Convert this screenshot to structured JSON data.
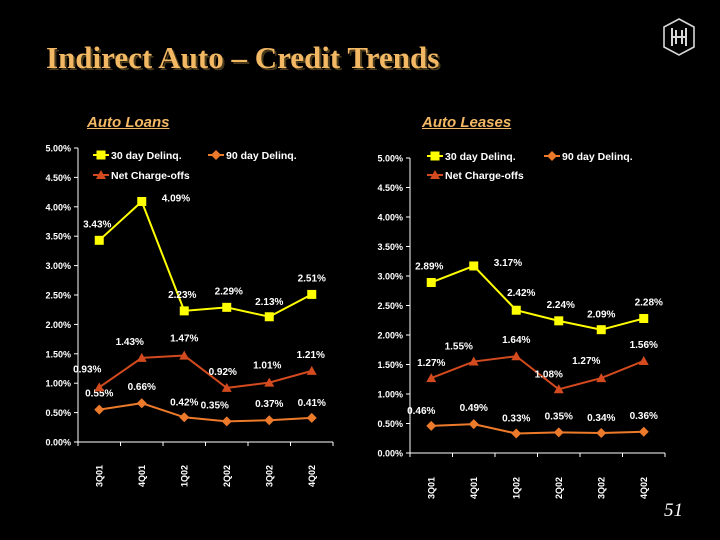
{
  "slide": {
    "title": "Indirect Auto – Credit Trends",
    "page_number": "51",
    "colors": {
      "title": "#f3b864",
      "background": "#000000"
    }
  },
  "panels": [
    {
      "title": "Auto Loans"
    },
    {
      "title": "Auto Leases"
    }
  ],
  "chart_data": [
    {
      "type": "line",
      "title": "Auto Loans",
      "categories": [
        "3Q01",
        "4Q01",
        "1Q02",
        "2Q02",
        "3Q02",
        "4Q02"
      ],
      "ylim": [
        0,
        5
      ],
      "y_ticks": [
        "0.00%",
        "0.50%",
        "1.00%",
        "1.50%",
        "2.00%",
        "2.50%",
        "3.00%",
        "3.50%",
        "4.00%",
        "4.50%",
        "5.00%"
      ],
      "grid": false,
      "legend": "top",
      "series": [
        {
          "name": "30 day Delinq.",
          "color": "#ffff00",
          "marker": "square",
          "values": [
            3.43,
            4.09,
            2.23,
            2.29,
            2.13,
            2.51
          ],
          "labels": [
            "3.43%",
            "4.09%",
            "2.23%",
            "2.29%",
            "2.13%",
            "2.51%"
          ]
        },
        {
          "name": "90 day Delinq.",
          "color": "#ec7a2a",
          "marker": "diamond",
          "values": [
            0.55,
            0.66,
            0.42,
            0.35,
            0.37,
            0.41
          ],
          "labels": [
            "0.55%",
            "0.66%",
            "0.42%",
            "0.35%",
            "0.37%",
            "0.41%"
          ]
        },
        {
          "name": "Net Charge-offs",
          "color": "#d24a1e",
          "marker": "triangle",
          "values": [
            0.93,
            1.43,
            1.47,
            0.92,
            1.01,
            1.21
          ],
          "labels": [
            "0.93%",
            "1.43%",
            "1.47%",
            "0.92%",
            "1.01%",
            "1.21%"
          ]
        }
      ]
    },
    {
      "type": "line",
      "title": "Auto Leases",
      "categories": [
        "3Q01",
        "4Q01",
        "1Q02",
        "2Q02",
        "3Q02",
        "4Q02"
      ],
      "ylim": [
        0,
        5
      ],
      "y_ticks": [
        "0.00%",
        "0.50%",
        "1.00%",
        "1.50%",
        "2.00%",
        "2.50%",
        "3.00%",
        "3.50%",
        "4.00%",
        "4.50%",
        "5.00%"
      ],
      "grid": false,
      "legend": "top",
      "series": [
        {
          "name": "30 day Delinq.",
          "color": "#ffff00",
          "marker": "square",
          "values": [
            2.89,
            3.17,
            2.42,
            2.24,
            2.09,
            2.28
          ],
          "labels": [
            "2.89%",
            "3.17%",
            "2.42%",
            "2.24%",
            "2.09%",
            "2.28%"
          ]
        },
        {
          "name": "90 day Delinq.",
          "color": "#ec7a2a",
          "marker": "diamond",
          "values": [
            0.46,
            0.49,
            0.33,
            0.35,
            0.34,
            0.36
          ],
          "labels": [
            "0.46%",
            "0.49%",
            "0.33%",
            "0.35%",
            "0.34%",
            "0.36%"
          ]
        },
        {
          "name": "Net Charge-offs",
          "color": "#d24a1e",
          "marker": "triangle",
          "values": [
            1.27,
            1.55,
            1.64,
            1.08,
            1.27,
            1.56
          ],
          "labels": [
            "1.27%",
            "1.55%",
            "1.64%",
            "1.08%",
            "1.27%",
            "1.56%"
          ]
        }
      ]
    }
  ]
}
